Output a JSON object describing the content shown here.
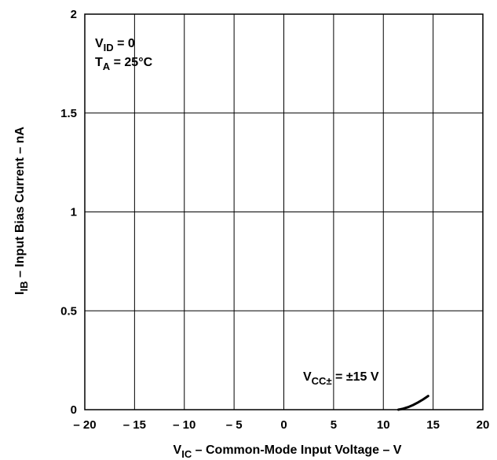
{
  "chart_data": {
    "type": "line",
    "xlim": [
      -20,
      20
    ],
    "ylim": [
      0,
      2
    ],
    "x_ticks": [
      -20,
      -15,
      -10,
      -5,
      0,
      5,
      10,
      15,
      20
    ],
    "x_tick_labels": [
      "– 20",
      "– 15",
      "– 10",
      "– 5",
      "0",
      "5",
      "10",
      "15",
      "20"
    ],
    "y_ticks": [
      0,
      0.5,
      1,
      1.5,
      2
    ],
    "y_tick_labels": [
      "0",
      "0.5",
      "1",
      "1.5",
      "2"
    ],
    "grid": true,
    "xlabel": {
      "main": "V",
      "sub": "IC",
      "rest": " – Common-Mode Input Voltage – V"
    },
    "ylabel": {
      "main": "I",
      "sub": "IB",
      "rest": " – Input Bias Current – nA"
    },
    "conditions": [
      {
        "main": "V",
        "sub": "ID",
        "rest": " = 0"
      },
      {
        "main": "T",
        "sub": "A",
        "rest": " = 25°C"
      }
    ],
    "series": [
      {
        "annotation": {
          "main": "V",
          "sub": "CC±",
          "rest": " = ±15 V"
        },
        "x": [
          11.5,
          12.0,
          12.5,
          13.0,
          13.5,
          14.0,
          14.5
        ],
        "y": [
          0.0,
          0.005,
          0.013,
          0.024,
          0.037,
          0.052,
          0.069
        ]
      }
    ],
    "colors": {
      "line": "#000000",
      "grid": "#000000",
      "background": "#ffffff"
    }
  }
}
